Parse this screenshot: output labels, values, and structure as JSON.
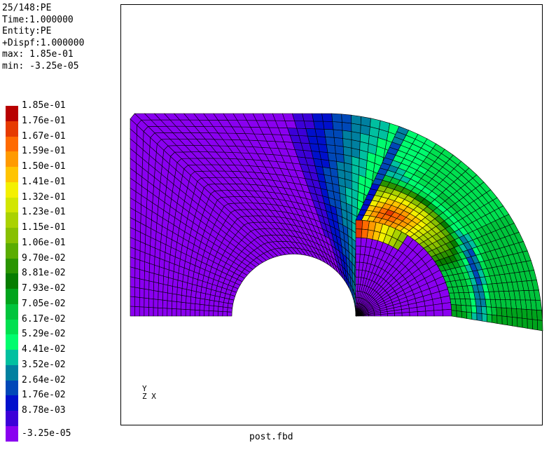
{
  "header": {
    "step": "25/148:PE",
    "time": "Time:1.000000",
    "entity": "Entity:PE",
    "dispf": "+Dispf:1.000000",
    "max": "max: 1.85e-01",
    "min": "min: -3.25e-05"
  },
  "legend": [
    {
      "label": "1.85e-01",
      "color": "#b80000"
    },
    {
      "label": "1.76e-01",
      "color": "#e63a00"
    },
    {
      "label": "1.67e-01",
      "color": "#ff6a00"
    },
    {
      "label": "1.59e-01",
      "color": "#ff9a00"
    },
    {
      "label": "1.50e-01",
      "color": "#ffc400"
    },
    {
      "label": "1.41e-01",
      "color": "#f4f000"
    },
    {
      "label": "1.32e-01",
      "color": "#d2e600"
    },
    {
      "label": "1.23e-01",
      "color": "#aad200"
    },
    {
      "label": "1.15e-01",
      "color": "#88c000"
    },
    {
      "label": "1.06e-01",
      "color": "#5aac00"
    },
    {
      "label": "9.70e-02",
      "color": "#2a9400"
    },
    {
      "label": "8.81e-02",
      "color": "#067c00"
    },
    {
      "label": "7.93e-02",
      "color": "#00a41c"
    },
    {
      "label": "7.05e-02",
      "color": "#00c43c"
    },
    {
      "label": "6.17e-02",
      "color": "#00e050"
    },
    {
      "label": "5.29e-02",
      "color": "#00fc6e"
    },
    {
      "label": "4.41e-02",
      "color": "#00c0a0"
    },
    {
      "label": "3.52e-02",
      "color": "#0080a0"
    },
    {
      "label": "2.64e-02",
      "color": "#0048b8"
    },
    {
      "label": "1.76e-02",
      "color": "#0010cc"
    },
    {
      "label": "8.78e-03",
      "color": "#3c00d8"
    },
    {
      "label": "-3.25e-05",
      "color": "#8a00f0"
    }
  ],
  "axes": {
    "y": "Y",
    "zx": "Z X"
  },
  "filename": "post.fbd"
}
